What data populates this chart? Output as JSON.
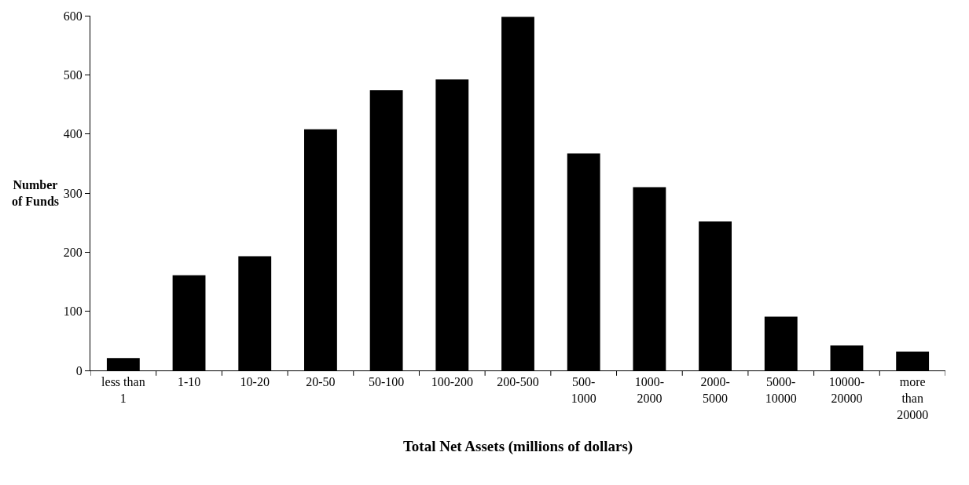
{
  "chart_data": {
    "type": "bar",
    "xlabel": "Total Net Assets (millions of dollars)",
    "ylabel": "Number\nof Funds",
    "categories": [
      "less than\n1",
      "1-10",
      "10-20",
      "20-50",
      "50-100",
      "100-200",
      "200-500",
      "500-\n1000",
      "1000-\n2000",
      "2000-\n5000",
      "5000-\n10000",
      "10000-\n20000",
      "more\nthan\n20000"
    ],
    "values": [
      21,
      161,
      193,
      408,
      474,
      492,
      598,
      367,
      310,
      252,
      91,
      42,
      32
    ],
    "color": "#000000",
    "ylim": [
      0,
      600
    ],
    "yticks": [
      0,
      100,
      200,
      300,
      400,
      500,
      600
    ],
    "grid": false
  }
}
